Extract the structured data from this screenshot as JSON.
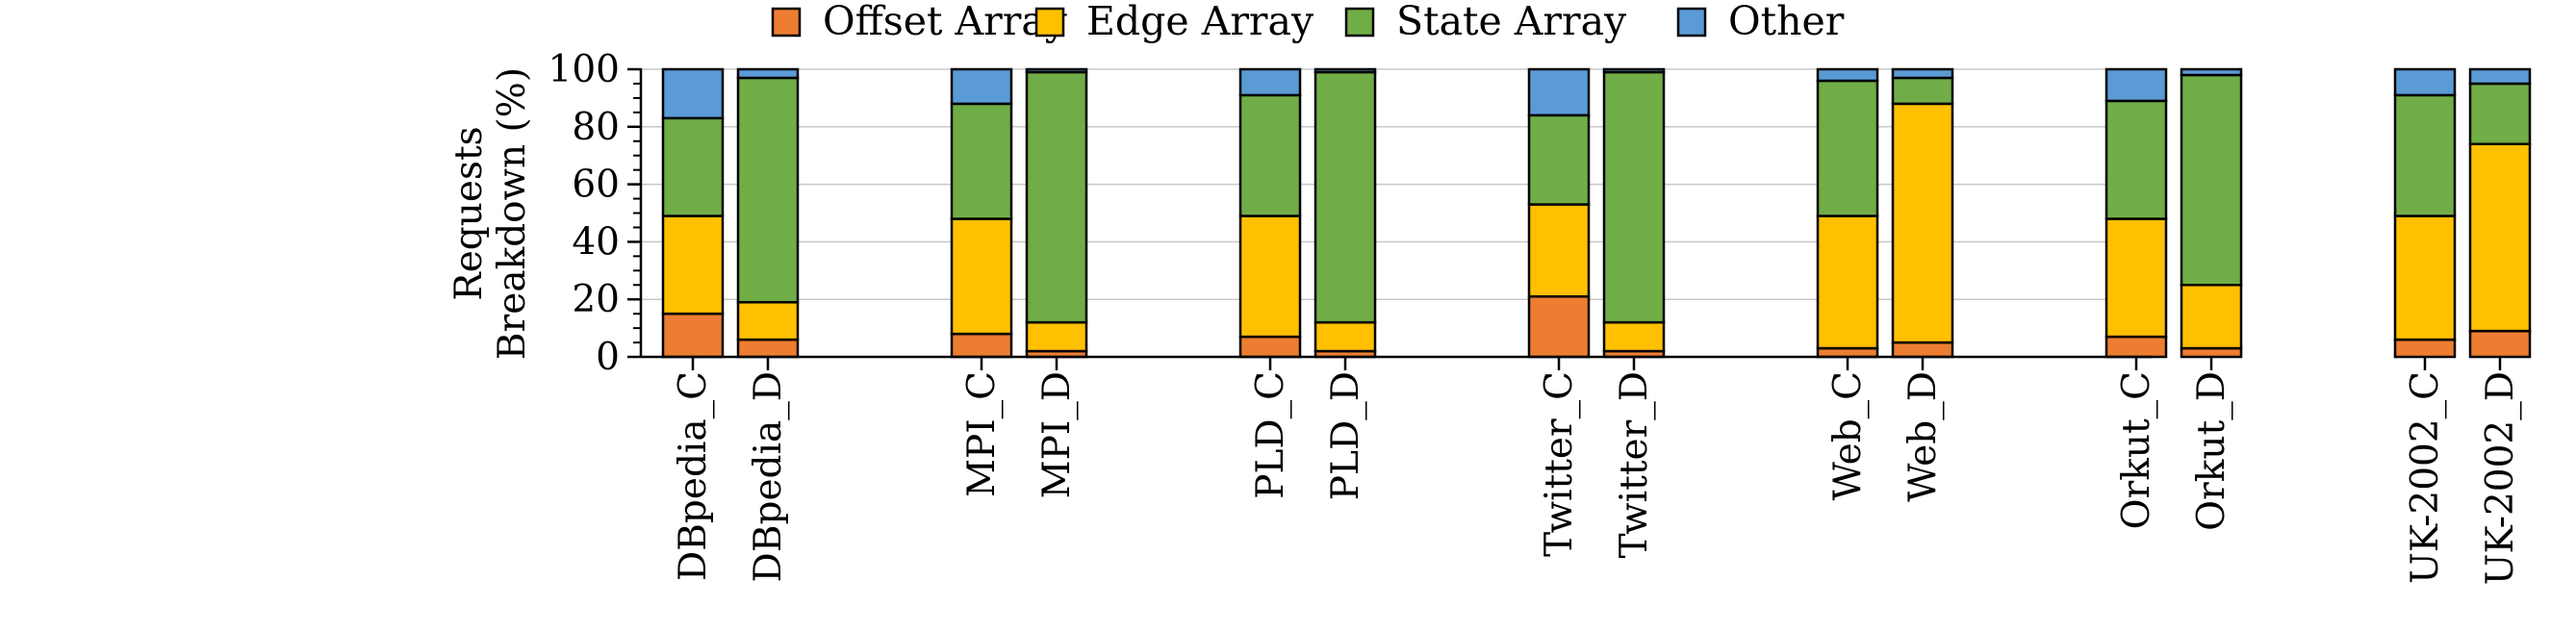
{
  "chart_data": {
    "type": "bar",
    "stacked": true,
    "ylabel": [
      "Requests",
      "Breakdown (%)"
    ],
    "ylim": [
      0,
      100
    ],
    "yticks": [
      "0",
      "20",
      "40",
      "60",
      "80",
      "100"
    ],
    "grid": true,
    "legend_position": "top",
    "categories": [
      "DBpedia_C",
      "DBpedia_D",
      "MPI_C",
      "MPI_D",
      "PLD_C",
      "PLD_D",
      "Twitter_C",
      "Twitter_D",
      "Web_C",
      "Web_D",
      "Orkut_C",
      "Orkut_D",
      "UK-2002_C",
      "UK-2002_D"
    ],
    "series": [
      {
        "name": "Offset Array",
        "color": "#ED7D31",
        "values": [
          15,
          6,
          8,
          2,
          7,
          2,
          21,
          2,
          3,
          5,
          7,
          3,
          6,
          9
        ]
      },
      {
        "name": "Edge Array",
        "color": "#FFC000",
        "values": [
          34,
          13,
          40,
          10,
          42,
          10,
          32,
          10,
          46,
          83,
          41,
          22,
          43,
          65
        ]
      },
      {
        "name": "State Array",
        "color": "#70AD47",
        "values": [
          34,
          78,
          40,
          87,
          42,
          87,
          31,
          87,
          47,
          9,
          41,
          73,
          42,
          21
        ]
      },
      {
        "name": "Other",
        "color": "#5B9BD5",
        "values": [
          17,
          3,
          12,
          1,
          9,
          1,
          16,
          1,
          4,
          3,
          11,
          2,
          9,
          5
        ]
      }
    ]
  }
}
